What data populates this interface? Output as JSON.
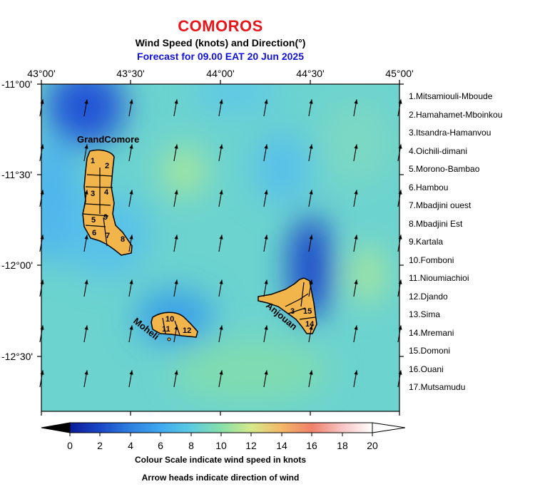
{
  "title": "COMOROS",
  "subtitle": "Wind Speed (knots) and Direction(°)",
  "forecast": "Forecast for  09.00 EAT 20 Jun 2025",
  "x_ticks": [
    "43°00'",
    "43°30'",
    "44°00'",
    "44°30'",
    "45°00'"
  ],
  "y_ticks": [
    "-11°00'",
    "-11°30'",
    "-12°00'",
    "-12°30'"
  ],
  "island_labels": {
    "grande_comore": "GrandComore",
    "moheli": "Moheli",
    "anjouan": "Anjouan"
  },
  "region_numbers": [
    "1",
    "2",
    "3",
    "4",
    "5",
    "6",
    "7",
    "8",
    "9",
    "10",
    "11",
    "12",
    "3",
    "15",
    "14"
  ],
  "regions": [
    "1.Mitsamiouli-Mboude",
    "2.Hamahamet-Mboinkou",
    "3.Itsandra-Hamanvou",
    "4.Oichili-dimani",
    "5.Morono-Bambao",
    "6.Hambou",
    "7.Mbadjini ouest",
    "8.Mbadjini Est",
    "9.Kartala",
    "10.Fomboni",
    "11.Nioumiachioi",
    "12.Djando",
    "13.Sima",
    "14.Mremani",
    "15.Domoni",
    "16.Ouani",
    "17.Mutsamudu"
  ],
  "colorbar": {
    "ticks": [
      "0",
      "2",
      "4",
      "6",
      "8",
      "10",
      "12",
      "14",
      "16",
      "18",
      "20"
    ],
    "caption": "Colour Scale indicate wind speed in knots",
    "caption2": "Arrow heads indicate direction of wind"
  },
  "wind": {
    "direction_deg": 10,
    "note": "nearly uniform southerly winds, arrows pointing to north / north-northeast",
    "slow_zones": [
      "north of Grande Comore (~2-4 kt)",
      "north of Anjouan (~2-4 kt)",
      "near Moheli (~4-6 kt)"
    ],
    "fast_zones": [
      "around 44°00' -11°30' (~10 kt)",
      "east of Anjouan (~10 kt)"
    ]
  },
  "colors": {
    "title": "#e8161b",
    "forecast": "#1010e0",
    "land": "#f2b54b",
    "scale_low": "#0b1a9a",
    "scale_mid": "#74dca0",
    "scale_high": "#ffffff"
  }
}
